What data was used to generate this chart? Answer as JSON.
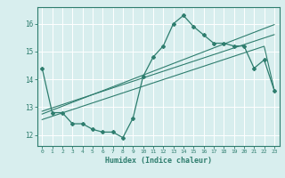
{
  "xlabel": "Humidex (Indice chaleur)",
  "x": [
    0,
    1,
    2,
    3,
    4,
    5,
    6,
    7,
    8,
    9,
    10,
    11,
    12,
    13,
    14,
    15,
    16,
    17,
    18,
    19,
    20,
    21,
    22,
    23
  ],
  "line_main": [
    14.4,
    12.8,
    12.8,
    12.4,
    12.4,
    12.2,
    12.1,
    12.1,
    11.9,
    12.6,
    14.1,
    14.8,
    15.2,
    16.0,
    16.3,
    15.9,
    15.6,
    15.3,
    15.3,
    15.2,
    15.2,
    14.4,
    14.7,
    13.6
  ],
  "line_reg1": [
    12.85,
    12.97,
    13.09,
    13.21,
    13.33,
    13.45,
    13.57,
    13.69,
    13.81,
    13.93,
    14.05,
    14.17,
    14.29,
    14.41,
    14.53,
    14.65,
    14.77,
    14.89,
    15.01,
    15.13,
    15.25,
    15.37,
    15.49,
    15.61
  ],
  "line_reg2": [
    12.75,
    12.89,
    13.03,
    13.17,
    13.31,
    13.45,
    13.59,
    13.73,
    13.87,
    14.01,
    14.15,
    14.29,
    14.43,
    14.57,
    14.71,
    14.85,
    14.99,
    15.13,
    15.27,
    15.41,
    15.55,
    15.69,
    15.83,
    15.97
  ],
  "line_reg3": [
    12.55,
    12.67,
    12.79,
    12.91,
    13.03,
    13.15,
    13.27,
    13.39,
    13.51,
    13.63,
    13.75,
    13.87,
    13.99,
    14.11,
    14.23,
    14.35,
    14.47,
    14.59,
    14.71,
    14.83,
    14.95,
    15.07,
    15.19,
    13.62
  ],
  "color": "#2e7d6e",
  "bg_color": "#d8eeee",
  "grid_color": "#ffffff",
  "ylim": [
    11.6,
    16.6
  ],
  "yticks": [
    12,
    13,
    14,
    15,
    16
  ],
  "xticks": [
    0,
    1,
    2,
    3,
    4,
    5,
    6,
    7,
    8,
    9,
    10,
    11,
    12,
    13,
    14,
    15,
    16,
    17,
    18,
    19,
    20,
    21,
    22,
    23
  ]
}
